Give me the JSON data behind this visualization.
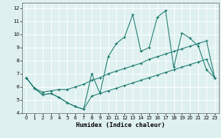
{
  "title": "",
  "xlabel": "Humidex (Indice chaleur)",
  "background_color": "#dff0f0",
  "grid_color": "#ffffff",
  "line_color": "#1a7a6e",
  "xlim": [
    -0.5,
    23.5
  ],
  "ylim": [
    4,
    12.4
  ],
  "xticks": [
    0,
    1,
    2,
    3,
    4,
    5,
    6,
    7,
    8,
    9,
    10,
    11,
    12,
    13,
    14,
    15,
    16,
    17,
    18,
    19,
    20,
    21,
    22,
    23
  ],
  "yticks": [
    4,
    5,
    6,
    7,
    8,
    9,
    10,
    11,
    12
  ],
  "line1_x": [
    0,
    1,
    2,
    3,
    4,
    5,
    6,
    7,
    8,
    9,
    10,
    11,
    12,
    13,
    14,
    15,
    16,
    17,
    18,
    19,
    20,
    21,
    22,
    23
  ],
  "line1_y": [
    6.7,
    5.9,
    5.4,
    5.5,
    5.2,
    4.8,
    4.5,
    4.3,
    7.0,
    5.5,
    8.3,
    9.3,
    9.8,
    11.5,
    8.7,
    9.0,
    11.3,
    11.8,
    7.5,
    10.1,
    9.7,
    9.1,
    7.3,
    6.7
  ],
  "line2_x": [
    0,
    1,
    2,
    3,
    4,
    5,
    6,
    7,
    8,
    9,
    10,
    11,
    12,
    13,
    14,
    15,
    16,
    17,
    18,
    19,
    20,
    21,
    22,
    23
  ],
  "line2_y": [
    6.7,
    5.9,
    5.6,
    5.7,
    5.8,
    5.8,
    6.0,
    6.2,
    6.5,
    6.7,
    7.0,
    7.2,
    7.4,
    7.6,
    7.8,
    8.1,
    8.3,
    8.5,
    8.7,
    8.9,
    9.1,
    9.3,
    9.5,
    6.7
  ],
  "line3_x": [
    0,
    1,
    2,
    3,
    4,
    5,
    6,
    7,
    8,
    9,
    10,
    11,
    12,
    13,
    14,
    15,
    16,
    17,
    18,
    19,
    20,
    21,
    22,
    23
  ],
  "line3_y": [
    6.7,
    5.9,
    5.4,
    5.5,
    5.2,
    4.8,
    4.5,
    4.3,
    5.3,
    5.5,
    5.7,
    5.9,
    6.1,
    6.3,
    6.5,
    6.7,
    6.9,
    7.1,
    7.3,
    7.5,
    7.7,
    7.9,
    8.1,
    6.7
  ]
}
